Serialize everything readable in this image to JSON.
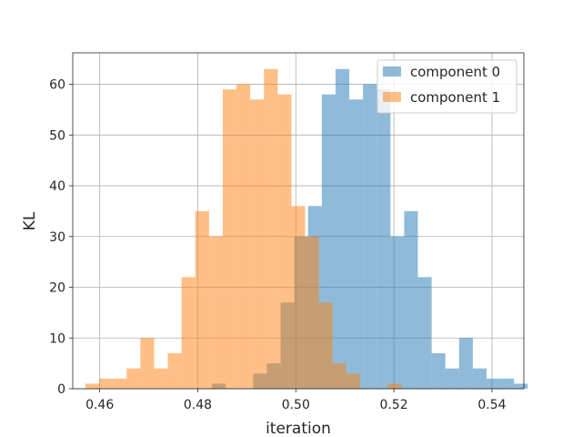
{
  "chart_data": {
    "type": "bar",
    "xlabel": "iteration",
    "ylabel": "KL",
    "xlim": [
      0.4545,
      0.5465
    ],
    "ylim": [
      0,
      66.2
    ],
    "xticks": [
      "0.46",
      "0.48",
      "0.50",
      "0.52",
      "0.54"
    ],
    "yticks": [
      "0",
      "10",
      "20",
      "30",
      "40",
      "50",
      "60"
    ],
    "grid": true,
    "legend_position": "top-right",
    "colors": {
      "component_0": "#1f77b4",
      "component_1": "#ff7f0e",
      "bar_opacity": "0.5",
      "grid": "#b0b0b0",
      "axes": "#262626"
    },
    "bin_width": 0.0028,
    "series": [
      {
        "name": "component 0",
        "bins": [
          [
            0.4843,
            1
          ],
          [
            0.4927,
            3
          ],
          [
            0.4955,
            5
          ],
          [
            0.4983,
            17
          ],
          [
            0.5011,
            30
          ],
          [
            0.5039,
            36
          ],
          [
            0.5067,
            58
          ],
          [
            0.5095,
            63
          ],
          [
            0.5123,
            57
          ],
          [
            0.5151,
            60
          ],
          [
            0.5179,
            59
          ],
          [
            0.5207,
            30
          ],
          [
            0.5235,
            35
          ],
          [
            0.5263,
            22
          ],
          [
            0.5291,
            7
          ],
          [
            0.5319,
            4
          ],
          [
            0.5347,
            10
          ],
          [
            0.5375,
            4
          ],
          [
            0.5403,
            2
          ],
          [
            0.5431,
            2
          ],
          [
            0.5459,
            1
          ]
        ]
      },
      {
        "name": "component 1",
        "bins": [
          [
            0.4585,
            1
          ],
          [
            0.4613,
            2
          ],
          [
            0.4641,
            2
          ],
          [
            0.4669,
            4
          ],
          [
            0.4697,
            10
          ],
          [
            0.4725,
            4
          ],
          [
            0.4753,
            7
          ],
          [
            0.4781,
            22
          ],
          [
            0.4809,
            35
          ],
          [
            0.4837,
            30
          ],
          [
            0.4865,
            59
          ],
          [
            0.4893,
            60
          ],
          [
            0.4921,
            57
          ],
          [
            0.4949,
            63
          ],
          [
            0.4977,
            58
          ],
          [
            0.5005,
            36
          ],
          [
            0.5033,
            30
          ],
          [
            0.5061,
            17
          ],
          [
            0.5089,
            5
          ],
          [
            0.5117,
            3
          ],
          [
            0.5201,
            1
          ]
        ]
      }
    ]
  }
}
